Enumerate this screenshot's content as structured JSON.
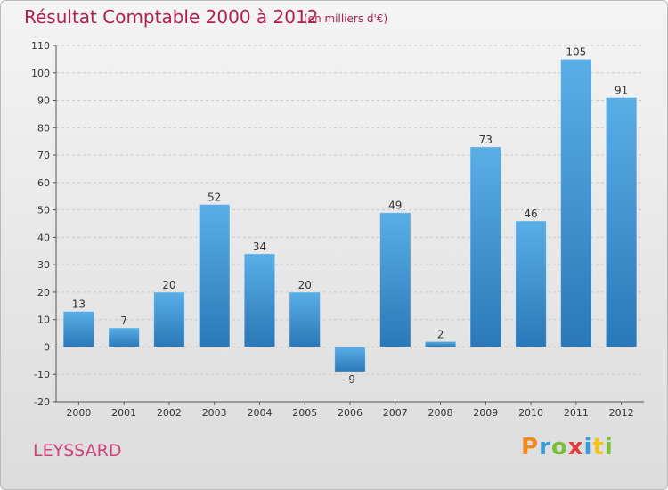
{
  "header": {
    "title": "Résultat Comptable 2000 à 2012",
    "subtitle": "(en milliers d'€)"
  },
  "footer": {
    "commune": "LEYSSARD",
    "brand": "Proxiti",
    "brand_colors": [
      "#f08a1c",
      "#3a9ad9",
      "#7cbf3a",
      "#e23b3b",
      "#3a9ad9",
      "#f0c419",
      "#7cbf3a"
    ]
  },
  "colors": {
    "bar_top": "#5aaee6",
    "bar_bottom": "#2a78b8",
    "grid": "#c9c9c9",
    "axis": "#555555"
  },
  "chart_data": {
    "type": "bar",
    "title": "Résultat Comptable 2000 à 2012",
    "subtitle": "(en milliers d'€)",
    "categories": [
      "2000",
      "2001",
      "2002",
      "2003",
      "2004",
      "2005",
      "2006",
      "2007",
      "2008",
      "2009",
      "2010",
      "2011",
      "2012"
    ],
    "values": [
      13,
      7,
      20,
      52,
      34,
      20,
      -9,
      49,
      2,
      73,
      46,
      105,
      91
    ],
    "ylim": [
      -20,
      110
    ],
    "yticks": [
      -20,
      -10,
      0,
      10,
      20,
      30,
      40,
      50,
      60,
      70,
      80,
      90,
      100,
      110
    ],
    "xlabel": "",
    "ylabel": "",
    "grid": true
  }
}
